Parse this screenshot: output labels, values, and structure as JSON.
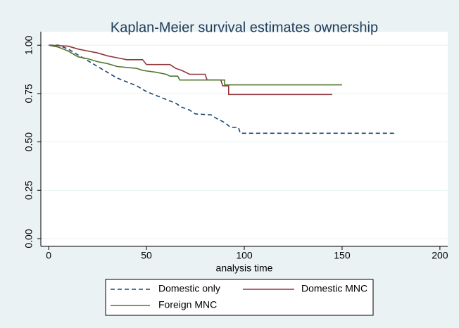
{
  "chart_data": {
    "type": "line",
    "step": false,
    "title": "Kaplan-Meier survival estimates ownership",
    "x_label": "analysis time",
    "xlim": [
      -4,
      204
    ],
    "xticks": [
      0,
      50,
      100,
      150,
      200
    ],
    "ylim": [
      -0.04,
      1.07
    ],
    "yticks": [
      {
        "value": 0,
        "label": "0.00"
      },
      0.25,
      {
        "value": 0.5,
        "label": "0.50"
      },
      0.75,
      {
        "value": 1,
        "label": "1.00"
      }
    ],
    "grid": true,
    "legend": "bottom",
    "series": [
      {
        "name": "Domestic only",
        "color": "#1a476f",
        "dashed": true,
        "x": [
          0,
          5,
          10,
          15,
          20,
          25,
          30,
          35,
          40,
          45,
          50,
          55,
          60,
          65,
          68,
          72,
          75,
          83,
          86,
          90,
          93,
          97,
          98,
          177
        ],
        "values": [
          1,
          1,
          0.98,
          0.95,
          0.92,
          0.89,
          0.86,
          0.83,
          0.81,
          0.79,
          0.76,
          0.74,
          0.72,
          0.7,
          0.68,
          0.665,
          0.645,
          0.64,
          0.62,
          0.6,
          0.575,
          0.575,
          0.545,
          0.545
        ]
      },
      {
        "name": "Domestic MNC",
        "color": "#90353b",
        "dashed": false,
        "x": [
          0,
          10,
          15,
          20,
          25,
          30,
          35,
          40,
          48,
          50,
          62,
          65,
          68,
          72,
          80,
          81,
          88,
          89,
          92,
          92,
          145
        ],
        "values": [
          1,
          0.995,
          0.98,
          0.97,
          0.96,
          0.945,
          0.935,
          0.925,
          0.925,
          0.9,
          0.9,
          0.88,
          0.87,
          0.85,
          0.85,
          0.82,
          0.82,
          0.79,
          0.79,
          0.745,
          0.745
        ]
      },
      {
        "name": "Foreign MNC",
        "color": "#55752f",
        "dashed": false,
        "x": [
          0,
          5,
          10,
          15,
          20,
          25,
          30,
          35,
          45,
          48,
          55,
          60,
          62,
          66,
          67,
          90,
          90,
          150
        ],
        "values": [
          1,
          0.99,
          0.97,
          0.94,
          0.93,
          0.915,
          0.905,
          0.89,
          0.88,
          0.87,
          0.86,
          0.85,
          0.84,
          0.84,
          0.82,
          0.82,
          0.795,
          0.795
        ]
      }
    ]
  }
}
